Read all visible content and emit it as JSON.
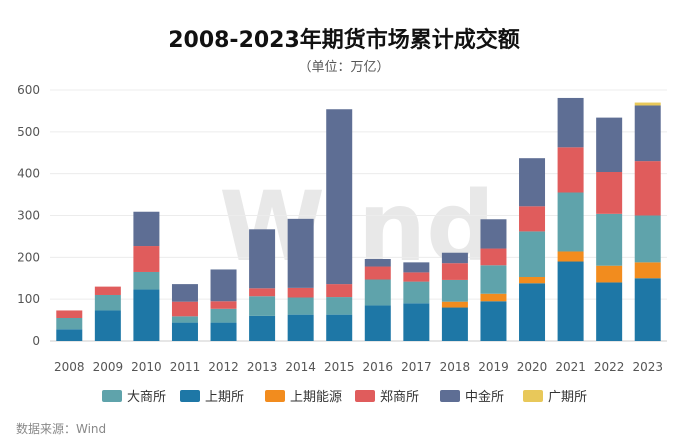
{
  "chart_data": {
    "type": "bar",
    "stacked": true,
    "title": "2008-2023年期货市场累计成交额",
    "subtitle": "（单位：万亿）",
    "categories": [
      "2008",
      "2009",
      "2010",
      "2011",
      "2012",
      "2013",
      "2014",
      "2015",
      "2016",
      "2017",
      "2018",
      "2019",
      "2020",
      "2021",
      "2022",
      "2023"
    ],
    "ylim": [
      0,
      600
    ],
    "yticks": [
      0,
      100,
      200,
      300,
      400,
      500,
      600
    ],
    "grid": true,
    "legend_position": "bottom",
    "series": [
      {
        "name": "上期所",
        "color": "#1e77a6",
        "values": [
          28,
          73,
          123,
          44,
          44,
          60,
          63,
          63,
          85,
          90,
          80,
          95,
          138,
          190,
          140,
          150
        ]
      },
      {
        "name": "上期能源",
        "color": "#f28c1e",
        "values": [
          0,
          0,
          0,
          0,
          0,
          0,
          0,
          0,
          0,
          0,
          14,
          18,
          15,
          24,
          40,
          38
        ]
      },
      {
        "name": "大商所",
        "color": "#5fa3ab",
        "values": [
          27,
          37,
          42,
          15,
          33,
          47,
          41,
          42,
          62,
          52,
          52,
          68,
          109,
          141,
          124,
          112
        ]
      },
      {
        "name": "郑商所",
        "color": "#e05c5c",
        "values": [
          18,
          20,
          62,
          35,
          18,
          19,
          23,
          31,
          31,
          22,
          40,
          40,
          60,
          108,
          100,
          130
        ]
      },
      {
        "name": "中金所",
        "color": "#5e6e94",
        "values": [
          0,
          0,
          82,
          42,
          76,
          141,
          165,
          418,
          18,
          24,
          25,
          70,
          115,
          118,
          130,
          133
        ]
      },
      {
        "name": "广期所",
        "color": "#e8c85a",
        "values": [
          0,
          0,
          0,
          0,
          0,
          0,
          0,
          0,
          0,
          0,
          0,
          0,
          0,
          0,
          0,
          7
        ]
      }
    ],
    "legend_order": [
      "大商所",
      "上期所",
      "上期能源",
      "郑商所",
      "中金所",
      "广期所"
    ],
    "watermark": "Wind",
    "source": "数据来源：Wind"
  }
}
